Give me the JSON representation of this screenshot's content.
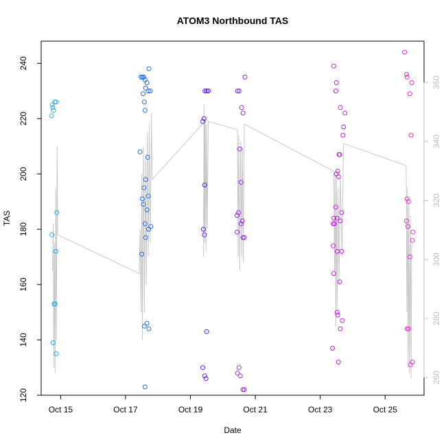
{
  "chart_data": {
    "type": "scatter",
    "title": "ATOM3 Northbound TAS",
    "xlabel": "Date",
    "ylabel": "TAS",
    "x_ticks": [
      "Oct 15",
      "Oct 17",
      "Oct 19",
      "Oct 21",
      "Oct 23",
      "Oct 25"
    ],
    "x_tick_days": [
      15,
      17,
      19,
      21,
      23,
      25
    ],
    "xlim": [
      14.4,
      26.2
    ],
    "ylim": [
      120,
      248
    ],
    "y_ticks": [
      120,
      140,
      160,
      180,
      200,
      220,
      240
    ],
    "right_axis": {
      "ylim": [
        254,
        374
      ],
      "ticks": [
        260,
        280,
        300,
        320,
        340,
        360
      ],
      "color": "#bdbdbd"
    },
    "grid": false,
    "line_series": {
      "color": "#c8c8c8",
      "points": [
        [
          14.75,
          165
        ],
        [
          14.77,
          182
        ],
        [
          14.79,
          130
        ],
        [
          14.81,
          175
        ],
        [
          14.83,
          128
        ],
        [
          14.85,
          195
        ],
        [
          14.87,
          140
        ],
        [
          14.89,
          210
        ],
        [
          14.91,
          178
        ],
        [
          17.42,
          164
        ],
        [
          17.45,
          180
        ],
        [
          17.48,
          150
        ],
        [
          17.5,
          200
        ],
        [
          17.52,
          140
        ],
        [
          17.55,
          210
        ],
        [
          17.58,
          150
        ],
        [
          17.61,
          205
        ],
        [
          17.64,
          160
        ],
        [
          17.67,
          215
        ],
        [
          17.7,
          170
        ],
        [
          17.73,
          218
        ],
        [
          17.76,
          175
        ],
        [
          17.8,
          222
        ],
        [
          17.82,
          198
        ],
        [
          19.45,
          219
        ],
        [
          19.4,
          170
        ],
        [
          19.42,
          225
        ],
        [
          19.44,
          175
        ],
        [
          19.46,
          220
        ],
        [
          19.48,
          172
        ],
        [
          19.5,
          218
        ],
        [
          19.52,
          180
        ],
        [
          19.55,
          219
        ],
        [
          20.45,
          216
        ],
        [
          20.47,
          170
        ],
        [
          20.49,
          214
        ],
        [
          20.52,
          165
        ],
        [
          20.55,
          212
        ],
        [
          20.58,
          170
        ],
        [
          20.6,
          210
        ],
        [
          20.63,
          168
        ],
        [
          20.66,
          218
        ],
        [
          23.42,
          201
        ],
        [
          23.44,
          165
        ],
        [
          23.46,
          200
        ],
        [
          23.48,
          145
        ],
        [
          23.5,
          198
        ],
        [
          23.52,
          150
        ],
        [
          23.55,
          195
        ],
        [
          23.58,
          160
        ],
        [
          23.62,
          200
        ],
        [
          23.67,
          170
        ],
        [
          23.72,
          211
        ],
        [
          25.65,
          203
        ],
        [
          25.67,
          150
        ],
        [
          25.69,
          195
        ],
        [
          25.71,
          130
        ],
        [
          25.73,
          190
        ],
        [
          25.75,
          128
        ],
        [
          25.78,
          185
        ],
        [
          25.8,
          126
        ],
        [
          25.82,
          175
        ]
      ]
    },
    "series": [
      {
        "color": "#2aa8e8",
        "points": [
          [
            14.72,
            221
          ],
          [
            14.74,
            225
          ],
          [
            14.76,
            224
          ],
          [
            14.78,
            223
          ],
          [
            14.82,
            226
          ],
          [
            14.86,
            226
          ],
          [
            14.73,
            178
          ],
          [
            14.8,
            153
          ],
          [
            14.83,
            153
          ],
          [
            14.85,
            172
          ],
          [
            14.88,
            186
          ],
          [
            14.77,
            139
          ],
          [
            14.86,
            135
          ]
        ]
      },
      {
        "color": "#1e6fe8",
        "points": [
          [
            17.48,
            235
          ],
          [
            17.52,
            235
          ],
          [
            17.56,
            235
          ],
          [
            17.6,
            234
          ],
          [
            17.66,
            233
          ],
          [
            17.72,
            238
          ],
          [
            17.62,
            231
          ],
          [
            17.7,
            230
          ],
          [
            17.76,
            230
          ],
          [
            17.54,
            229
          ],
          [
            17.58,
            226
          ],
          [
            17.6,
            223
          ],
          [
            17.45,
            208
          ],
          [
            17.68,
            206
          ],
          [
            17.62,
            198
          ],
          [
            17.57,
            195
          ],
          [
            17.52,
            191
          ],
          [
            17.7,
            192
          ],
          [
            17.55,
            189
          ],
          [
            17.66,
            187
          ],
          [
            17.6,
            182
          ],
          [
            17.78,
            181
          ],
          [
            17.71,
            180
          ],
          [
            17.62,
            177
          ],
          [
            17.5,
            171
          ],
          [
            17.66,
            146
          ],
          [
            17.58,
            145
          ],
          [
            17.72,
            144
          ],
          [
            17.6,
            123
          ]
        ]
      },
      {
        "color": "#5b1fe8",
        "points": [
          [
            19.45,
            230
          ],
          [
            19.5,
            230
          ],
          [
            19.55,
            230
          ],
          [
            19.38,
            219
          ],
          [
            19.42,
            220
          ],
          [
            19.44,
            196
          ],
          [
            19.4,
            180
          ],
          [
            19.43,
            178
          ],
          [
            19.5,
            143
          ],
          [
            19.38,
            130
          ],
          [
            19.44,
            127
          ],
          [
            19.48,
            126
          ]
        ]
      },
      {
        "color": "#9a27e0",
        "points": [
          [
            20.45,
            230
          ],
          [
            20.5,
            230
          ],
          [
            20.68,
            235
          ],
          [
            20.58,
            224
          ],
          [
            20.62,
            222
          ],
          [
            20.52,
            209
          ],
          [
            20.56,
            197
          ],
          [
            20.48,
            186
          ],
          [
            20.44,
            185
          ],
          [
            20.6,
            183
          ],
          [
            20.56,
            182
          ],
          [
            20.44,
            179
          ],
          [
            20.62,
            177
          ],
          [
            20.66,
            177
          ],
          [
            20.5,
            130
          ],
          [
            20.45,
            128
          ],
          [
            20.54,
            127
          ],
          [
            20.62,
            122
          ],
          [
            20.66,
            122
          ]
        ]
      },
      {
        "color": "#c41fe0",
        "points": [
          [
            23.42,
            239
          ],
          [
            23.5,
            233
          ],
          [
            23.48,
            230
          ],
          [
            23.62,
            224
          ],
          [
            23.76,
            222
          ],
          [
            23.72,
            217
          ],
          [
            23.7,
            214
          ],
          [
            23.6,
            207
          ],
          [
            23.58,
            207
          ],
          [
            23.54,
            201
          ],
          [
            23.5,
            200
          ],
          [
            23.56,
            199
          ],
          [
            23.48,
            188
          ],
          [
            23.52,
            184
          ],
          [
            23.42,
            184
          ],
          [
            23.44,
            182
          ],
          [
            23.66,
            186
          ],
          [
            23.62,
            183
          ],
          [
            23.4,
            182
          ],
          [
            23.4,
            174
          ],
          [
            23.52,
            172
          ],
          [
            23.66,
            172
          ],
          [
            23.42,
            164
          ],
          [
            23.6,
            161
          ],
          [
            23.52,
            150
          ],
          [
            23.54,
            149
          ],
          [
            23.68,
            147
          ],
          [
            23.62,
            144
          ],
          [
            23.38,
            137
          ],
          [
            23.56,
            132
          ]
        ]
      },
      {
        "color": "#e62fd2",
        "points": [
          [
            25.6,
            244
          ],
          [
            25.66,
            236
          ],
          [
            25.68,
            235
          ],
          [
            25.82,
            233
          ],
          [
            25.76,
            229
          ],
          [
            25.8,
            214
          ],
          [
            25.68,
            191
          ],
          [
            25.72,
            190
          ],
          [
            25.66,
            183
          ],
          [
            25.7,
            181
          ],
          [
            25.86,
            179
          ],
          [
            25.84,
            176
          ],
          [
            25.76,
            170
          ],
          [
            25.68,
            144
          ],
          [
            25.72,
            144
          ],
          [
            25.78,
            131
          ],
          [
            25.84,
            132
          ]
        ]
      }
    ]
  }
}
